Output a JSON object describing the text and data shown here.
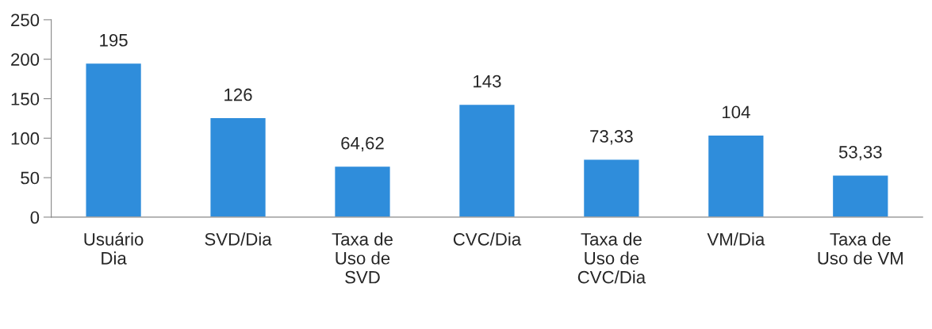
{
  "chart_data": {
    "type": "bar",
    "categories": [
      "Usuário\nDia",
      "SVD/Dia",
      "Taxa de\nUso de\nSVD",
      "CVC/Dia",
      "Taxa de\nUso de\nCVC/Dia",
      "VM/Dia",
      "Taxa de\nUso de VM"
    ],
    "values": [
      195,
      126,
      64.62,
      143,
      73.33,
      104,
      53.33
    ],
    "value_labels": [
      "195",
      "126",
      "64,62",
      "143",
      "73,33",
      "104",
      "53,33"
    ],
    "color": "#2f8ddb",
    "ylim": [
      0,
      250
    ],
    "yticks": [
      0,
      50,
      100,
      150,
      200,
      250
    ],
    "grid": false,
    "legend": false
  }
}
